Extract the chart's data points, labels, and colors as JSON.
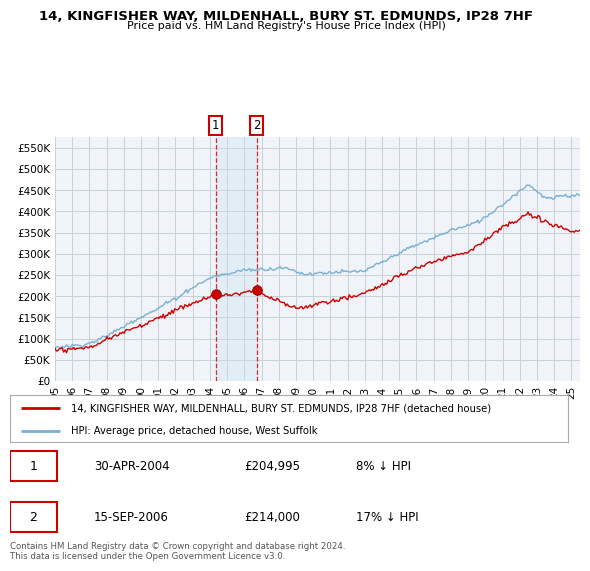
{
  "title": "14, KINGFISHER WAY, MILDENHALL, BURY ST. EDMUNDS, IP28 7HF",
  "subtitle": "Price paid vs. HM Land Registry's House Price Index (HPI)",
  "ylabel_ticks": [
    "£0",
    "£50K",
    "£100K",
    "£150K",
    "£200K",
    "£250K",
    "£300K",
    "£350K",
    "£400K",
    "£450K",
    "£500K",
    "£550K"
  ],
  "ytick_values": [
    0,
    50000,
    100000,
    150000,
    200000,
    250000,
    300000,
    350000,
    400000,
    450000,
    500000,
    550000
  ],
  "ylim": [
    0,
    575000
  ],
  "xlim_start": 1995.0,
  "xlim_end": 2025.5,
  "red_line_color": "#cc0000",
  "blue_line_color": "#7ab0d4",
  "span_color": "#cce0f0",
  "background_color": "#ffffff",
  "plot_bg_color": "#f0f4f8",
  "grid_color": "#c8d0d8",
  "sale1_x": 2004.33,
  "sale1_y": 204995,
  "sale1_label": "1",
  "sale1_date": "30-APR-2004",
  "sale1_price": "£204,995",
  "sale1_hpi": "8% ↓ HPI",
  "sale2_x": 2006.71,
  "sale2_y": 214000,
  "sale2_label": "2",
  "sale2_date": "15-SEP-2006",
  "sale2_price": "£214,000",
  "sale2_hpi": "17% ↓ HPI",
  "legend_red_label": "14, KINGFISHER WAY, MILDENHALL, BURY ST. EDMUNDS, IP28 7HF (detached house)",
  "legend_blue_label": "HPI: Average price, detached house, West Suffolk",
  "footer": "Contains HM Land Registry data © Crown copyright and database right 2024.\nThis data is licensed under the Open Government Licence v3.0.",
  "xtick_years": [
    1995,
    1996,
    1997,
    1998,
    1999,
    2000,
    2001,
    2002,
    2003,
    2004,
    2005,
    2006,
    2007,
    2008,
    2009,
    2010,
    2011,
    2012,
    2013,
    2014,
    2015,
    2016,
    2017,
    2018,
    2019,
    2020,
    2021,
    2022,
    2023,
    2024,
    2025
  ]
}
